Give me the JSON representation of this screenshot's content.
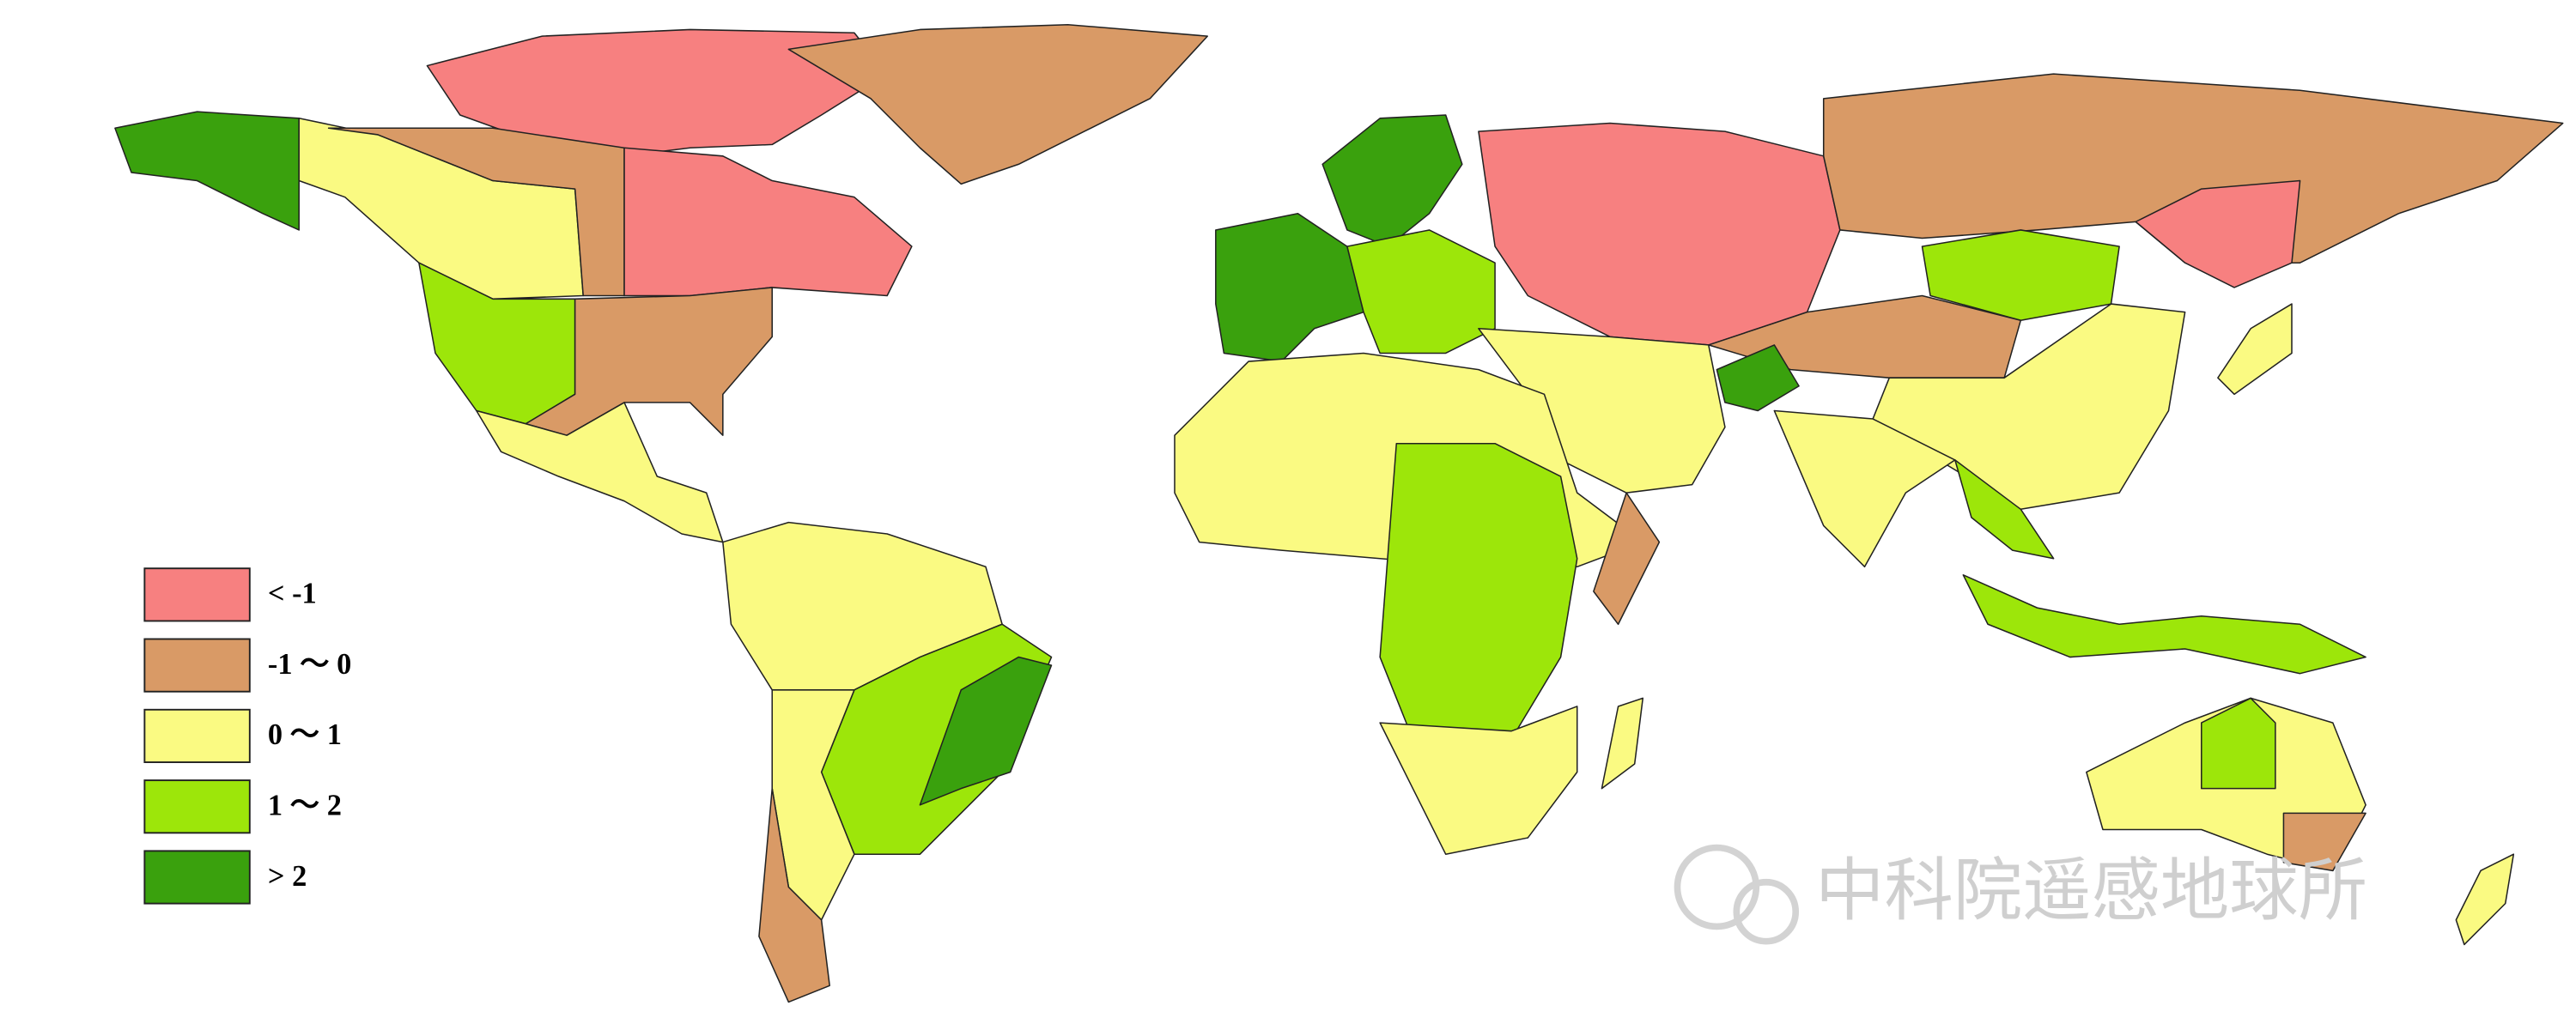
{
  "legend": {
    "items": [
      {
        "label": "< -1",
        "color": "#f78080"
      },
      {
        "label": "-1 ～ 0",
        "color": "#d99a66"
      },
      {
        "label": "0 ～ 1",
        "color": "#fafa82"
      },
      {
        "label": "1 ～ 2",
        "color": "#9de60a"
      },
      {
        "label": "> 2",
        "color": "#3aa10d"
      }
    ]
  },
  "watermark": "中科院遥感地球所"
}
